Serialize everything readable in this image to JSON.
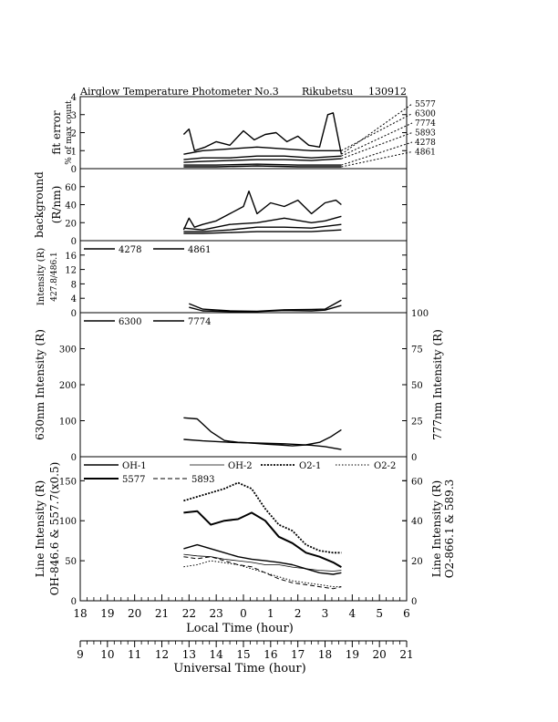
{
  "title": {
    "instrument": "Airglow Temperature Photometer No.3",
    "site": "Rikubetsu",
    "date": "130912"
  },
  "chart_data": [
    {
      "id": "fit_error",
      "type": "line",
      "ylabel": "fit error",
      "ylabel2": "% of max count",
      "ylim": [
        0,
        4
      ],
      "yticks": [
        0,
        1,
        2,
        3,
        4
      ],
      "x_units": "UT hour",
      "callout_labels": [
        "5577",
        "6300",
        "7774",
        "5893",
        "4278",
        "4861"
      ],
      "series": [
        {
          "name": "5577",
          "style": "solid",
          "x": [
            12.8,
            13.0,
            13.2,
            13.6,
            14.0,
            14.5,
            15.0,
            15.4,
            15.8,
            16.2,
            16.6,
            17.0,
            17.4,
            17.8,
            18.1,
            18.3,
            18.6
          ],
          "y": [
            1.9,
            2.2,
            1.0,
            1.2,
            1.5,
            1.3,
            2.1,
            1.6,
            1.9,
            2.0,
            1.5,
            1.8,
            1.3,
            1.2,
            3.0,
            3.1,
            0.8
          ]
        },
        {
          "name": "6300",
          "style": "solid",
          "x": [
            12.8,
            13.5,
            14.5,
            15.5,
            16.5,
            17.5,
            18.0,
            18.6
          ],
          "y": [
            0.8,
            1.0,
            1.1,
            1.2,
            1.1,
            1.0,
            1.0,
            1.0
          ]
        },
        {
          "name": "7774",
          "style": "solid",
          "x": [
            12.8,
            13.5,
            14.5,
            15.5,
            16.5,
            17.5,
            18.6
          ],
          "y": [
            0.5,
            0.6,
            0.6,
            0.7,
            0.7,
            0.6,
            0.7
          ]
        },
        {
          "name": "5893",
          "style": "solid",
          "x": [
            12.8,
            13.5,
            14.5,
            15.5,
            16.5,
            17.5,
            18.6
          ],
          "y": [
            0.35,
            0.4,
            0.45,
            0.5,
            0.5,
            0.45,
            0.55
          ]
        },
        {
          "name": "4278",
          "style": "solid",
          "x": [
            12.8,
            14.0,
            15.5,
            17.0,
            18.6
          ],
          "y": [
            0.2,
            0.2,
            0.25,
            0.2,
            0.2
          ]
        },
        {
          "name": "4861",
          "style": "solid",
          "x": [
            12.8,
            14.0,
            15.5,
            17.0,
            18.6
          ],
          "y": [
            0.1,
            0.1,
            0.15,
            0.1,
            0.1
          ]
        }
      ]
    },
    {
      "id": "background",
      "type": "line",
      "ylabel": "background",
      "ylabel2": "(R/nm)",
      "ylim": [
        0,
        80
      ],
      "yticks": [
        0,
        20,
        40,
        60
      ],
      "series": [
        {
          "name": "5577",
          "style": "solid",
          "x": [
            12.8,
            13.0,
            13.2,
            13.5,
            14.0,
            14.5,
            15.0,
            15.2,
            15.5,
            16.0,
            16.5,
            17.0,
            17.5,
            18.0,
            18.4,
            18.6
          ],
          "y": [
            12,
            25,
            15,
            18,
            22,
            30,
            38,
            55,
            30,
            42,
            38,
            45,
            30,
            42,
            45,
            40
          ]
        },
        {
          "name": "6300",
          "style": "solid",
          "x": [
            12.8,
            13.5,
            14.5,
            15.5,
            16.5,
            17.5,
            18.0,
            18.6
          ],
          "y": [
            14,
            12,
            18,
            20,
            25,
            20,
            22,
            27
          ]
        },
        {
          "name": "7774",
          "style": "solid",
          "x": [
            12.8,
            13.5,
            14.5,
            15.5,
            16.5,
            17.5,
            18.6
          ],
          "y": [
            10,
            10,
            12,
            15,
            15,
            14,
            18
          ]
        },
        {
          "name": "5893",
          "style": "solid",
          "x": [
            12.8,
            13.5,
            14.5,
            15.5,
            16.5,
            17.5,
            18.6
          ],
          "y": [
            8,
            8,
            9,
            10,
            10,
            10,
            12
          ]
        }
      ]
    },
    {
      "id": "intensity_blue",
      "type": "line",
      "ylabel": "Intensity (R)",
      "ylabel2": "427.8/486.1",
      "ylim": [
        0,
        20
      ],
      "yticks": [
        0,
        4,
        8,
        12,
        16
      ],
      "legend": [
        "4278",
        "4861"
      ],
      "series": [
        {
          "name": "4278",
          "style": "solid",
          "x": [
            13.0,
            13.5,
            14.5,
            15.5,
            16.5,
            17.5,
            18.0,
            18.6
          ],
          "y": [
            2.5,
            1.0,
            0.5,
            0.4,
            0.8,
            0.9,
            1.0,
            3.5
          ]
        },
        {
          "name": "4861",
          "style": "solid",
          "x": [
            13.0,
            13.5,
            14.5,
            15.5,
            16.5,
            17.5,
            18.0,
            18.6
          ],
          "y": [
            1.5,
            0.5,
            0.3,
            0.3,
            0.6,
            0.5,
            0.7,
            2.0
          ]
        }
      ]
    },
    {
      "id": "630_777",
      "type": "line",
      "ylabel": "630nm Intensity (R)",
      "ylabel_right": "777nm Intensity (R)",
      "ylim": [
        0,
        400
      ],
      "yticks": [
        0,
        100,
        200,
        300
      ],
      "ylim_right": [
        0,
        100
      ],
      "yticks_right": [
        0,
        25,
        50,
        75,
        100
      ],
      "legend": [
        "6300",
        "7774"
      ],
      "series": [
        {
          "name": "6300",
          "style": "solid",
          "x": [
            12.8,
            13.3,
            13.8,
            14.3,
            14.8,
            15.3,
            15.8,
            16.3,
            16.8,
            17.3,
            17.8,
            18.2,
            18.6
          ],
          "y": [
            108,
            105,
            70,
            45,
            40,
            38,
            35,
            33,
            30,
            33,
            40,
            55,
            75
          ]
        },
        {
          "name": "7774",
          "style": "solid",
          "axis": "right",
          "x": [
            12.8,
            13.5,
            14.5,
            15.5,
            16.5,
            17.5,
            18.0,
            18.6
          ],
          "y": [
            12,
            11,
            10,
            9.5,
            9,
            8,
            7,
            5
          ]
        }
      ]
    },
    {
      "id": "line_intensity",
      "type": "line",
      "ylabel": "Line Intensity (R)",
      "ylabel2": "OH-846.6 & 557.7(x0.5)",
      "ylabel_right": "Line Intensity (R)",
      "ylabel_right2": "O2-866.1 & 589.3",
      "ylim": [
        0,
        180
      ],
      "yticks": [
        0,
        50,
        100,
        150
      ],
      "ylim_right": [
        0,
        72
      ],
      "yticks_right": [
        0,
        20,
        40,
        60
      ],
      "legend": [
        "OH-1",
        "OH-2",
        "O2-1",
        "O2-2",
        "5577",
        "5893"
      ],
      "series": [
        {
          "name": "OH-1",
          "style": "solid",
          "x": [
            12.8,
            13.3,
            13.8,
            14.3,
            14.8,
            15.3,
            15.8,
            16.3,
            16.8,
            17.3,
            17.8,
            18.3,
            18.6
          ],
          "y": [
            65,
            70,
            65,
            60,
            55,
            52,
            50,
            48,
            45,
            40,
            35,
            33,
            35
          ]
        },
        {
          "name": "OH-2",
          "style": "thin",
          "x": [
            12.8,
            13.3,
            13.8,
            14.3,
            14.8,
            15.3,
            15.8,
            16.3,
            16.8,
            17.3,
            17.8,
            18.3,
            18.6
          ],
          "y": [
            58,
            56,
            55,
            52,
            50,
            48,
            45,
            45,
            42,
            40,
            38,
            37,
            38
          ]
        },
        {
          "name": "O2-1",
          "style": "dotted-heavy",
          "axis": "right",
          "x": [
            12.8,
            13.3,
            13.8,
            14.3,
            14.8,
            15.3,
            15.8,
            16.3,
            16.8,
            17.3,
            17.8,
            18.3,
            18.6
          ],
          "y": [
            50,
            52,
            54,
            56,
            59,
            56,
            46,
            38,
            35,
            28,
            25,
            24,
            24
          ]
        },
        {
          "name": "O2-2",
          "style": "dotted",
          "axis": "right",
          "x": [
            12.8,
            13.3,
            13.8,
            14.3,
            14.8,
            15.3,
            15.8,
            16.3,
            16.8,
            17.3,
            17.8,
            18.3,
            18.6
          ],
          "y": [
            17,
            18,
            20,
            19,
            18,
            16,
            14,
            12,
            10,
            9,
            8,
            7,
            7
          ]
        },
        {
          "name": "5577",
          "style": "solid-heavy",
          "x": [
            12.8,
            13.3,
            13.8,
            14.3,
            14.8,
            15.3,
            15.8,
            16.3,
            16.8,
            17.3,
            17.8,
            18.3,
            18.6
          ],
          "y": [
            110,
            112,
            95,
            100,
            102,
            110,
            100,
            80,
            72,
            60,
            55,
            48,
            42
          ]
        },
        {
          "name": "5893",
          "style": "dashed",
          "axis": "right",
          "x": [
            12.8,
            13.3,
            13.8,
            14.3,
            14.8,
            15.3,
            15.8,
            16.3,
            16.8,
            17.3,
            17.8,
            18.3,
            18.6
          ],
          "y": [
            22,
            21,
            22,
            20,
            18,
            17,
            14,
            11,
            9,
            8,
            7,
            6,
            7
          ]
        }
      ]
    }
  ],
  "axes": {
    "local_time": {
      "label": "Local Time (hour)",
      "ticks": [
        "18",
        "19",
        "20",
        "21",
        "22",
        "23",
        "0",
        "1",
        "2",
        "3",
        "4",
        "5",
        "6"
      ]
    },
    "universal_time": {
      "label": "Universal Time (hour)",
      "ticks": [
        "9",
        "10",
        "11",
        "12",
        "13",
        "14",
        "15",
        "16",
        "17",
        "18",
        "19",
        "20",
        "21"
      ]
    }
  },
  "colors": {
    "ink": "#000000",
    "paper": "#ffffff"
  }
}
